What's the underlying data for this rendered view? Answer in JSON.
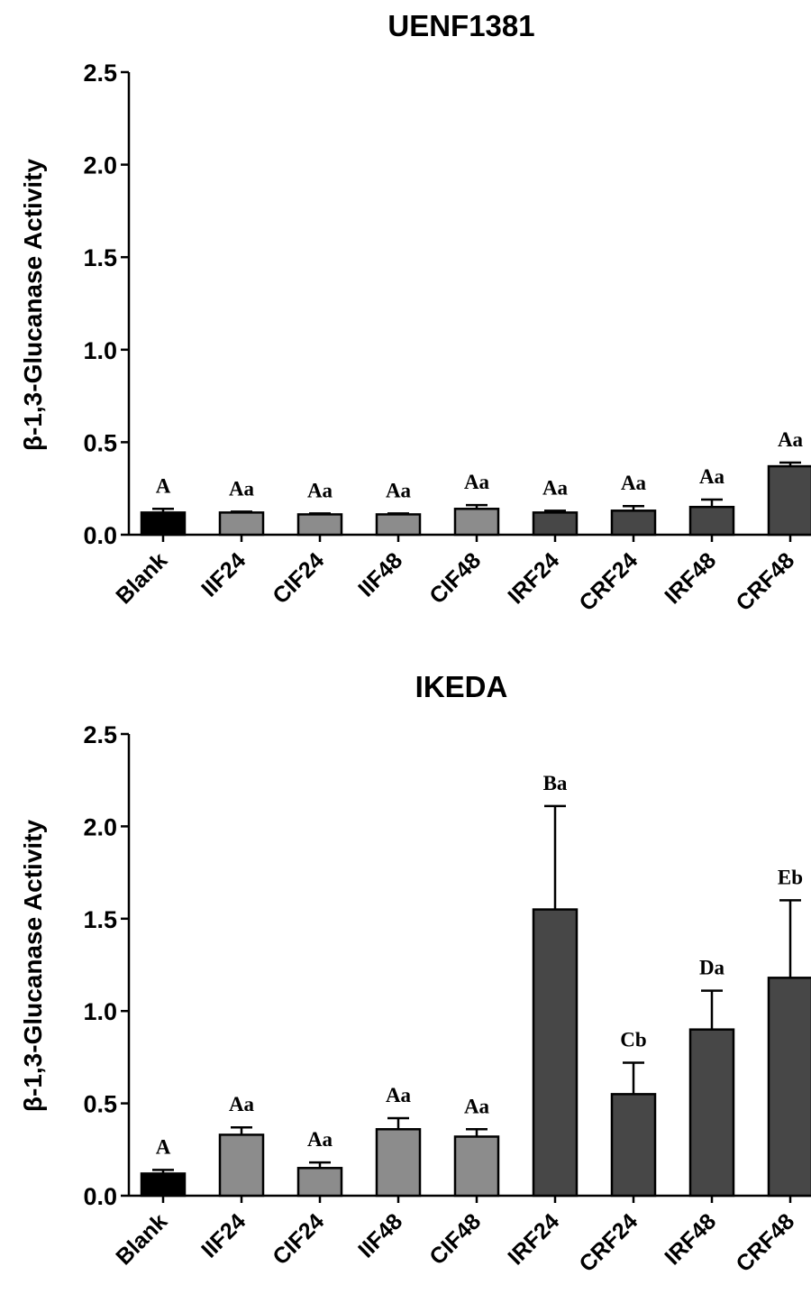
{
  "chart_data": [
    {
      "type": "bar",
      "title": "UENF1381",
      "ylabel": "β-1,3-Glucanase Activity",
      "xlabel": "",
      "ylim": [
        0,
        2.5
      ],
      "yticks": [
        "0.0",
        "0.5",
        "1.0",
        "1.5",
        "2.0",
        "2.5"
      ],
      "categories": [
        "Blank",
        "IIF24",
        "CIF24",
        "IIF48",
        "CIF48",
        "IRF24",
        "CRF24",
        "IRF48",
        "CRF48"
      ],
      "values": [
        0.12,
        0.12,
        0.11,
        0.11,
        0.14,
        0.12,
        0.13,
        0.15,
        0.37
      ],
      "errors": [
        0.02,
        0.005,
        0.005,
        0.005,
        0.02,
        0.01,
        0.025,
        0.04,
        0.02
      ],
      "labels": [
        "A",
        "Aa",
        "Aa",
        "Aa",
        "Aa",
        "Aa",
        "Aa",
        "Aa",
        "Aa"
      ],
      "colors": [
        "#000000",
        "#8c8c8c",
        "#8c8c8c",
        "#8c8c8c",
        "#8c8c8c",
        "#474747",
        "#474747",
        "#474747",
        "#474747"
      ],
      "grid": false
    },
    {
      "type": "bar",
      "title": "IKEDA",
      "ylabel": "β-1,3-Glucanase Activity",
      "xlabel": "",
      "ylim": [
        0,
        2.5
      ],
      "yticks": [
        "0.0",
        "0.5",
        "1.0",
        "1.5",
        "2.0",
        "2.5"
      ],
      "categories": [
        "Blank",
        "IIF24",
        "CIF24",
        "IIF48",
        "CIF48",
        "IRF24",
        "CRF24",
        "IRF48",
        "CRF48"
      ],
      "values": [
        0.12,
        0.33,
        0.15,
        0.36,
        0.32,
        1.55,
        0.55,
        0.9,
        1.18
      ],
      "errors": [
        0.02,
        0.04,
        0.03,
        0.06,
        0.04,
        0.56,
        0.17,
        0.21,
        0.42
      ],
      "labels": [
        "A",
        "Aa",
        "Aa",
        "Aa",
        "Aa",
        "Ba",
        "Cb",
        "Da",
        "Eb"
      ],
      "colors": [
        "#000000",
        "#8c8c8c",
        "#8c8c8c",
        "#8c8c8c",
        "#8c8c8c",
        "#474747",
        "#474747",
        "#474747",
        "#474747"
      ],
      "grid": false
    }
  ]
}
